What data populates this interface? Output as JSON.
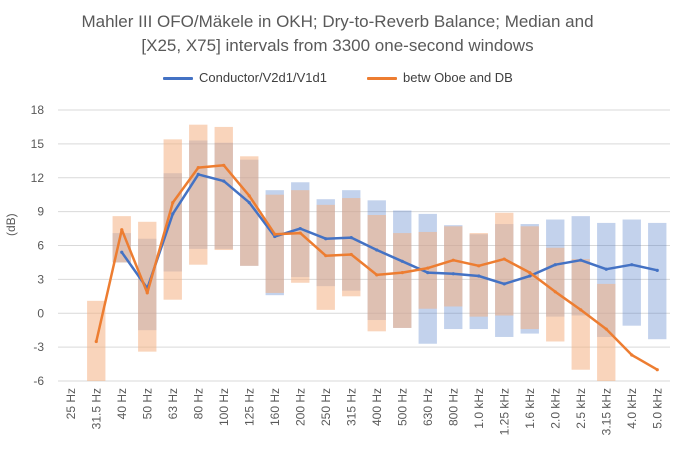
{
  "chart_data": {
    "type": "line",
    "title": "Mahler III OFO/Mäkele in OKH; Dry-to-Reverb Balance; Median and",
    "subtitle": "[X25, X75] intervals from 3300 one-second windows",
    "ylabel": "(dB)",
    "xlabel": "",
    "ylim": [
      -6,
      18
    ],
    "yticks": [
      18,
      15,
      12,
      9,
      6,
      3,
      0,
      -3,
      -6
    ],
    "grid": true,
    "legend_position": "top",
    "categories": [
      "25 Hz",
      "31.5 Hz",
      "40 Hz",
      "50 Hz",
      "63 Hz",
      "80 Hz",
      "100 Hz",
      "125 Hz",
      "160 Hz",
      "200 Hz",
      "250 Hz",
      "315 Hz",
      "400 Hz",
      "500 Hz",
      "630 Hz",
      "800 Hz",
      "1.0 kHz",
      "1.25 kHz",
      "1.6 kHz",
      "2.0 kHz",
      "2.5 kHz",
      "3.15 kHz",
      "4.0 kHz",
      "5.0 kHz"
    ],
    "series": [
      {
        "name": "Conductor/V2d1/V1d1",
        "color": "#4472c4",
        "values": [
          null,
          null,
          5.4,
          2.2,
          8.8,
          12.3,
          11.7,
          9.8,
          6.8,
          7.5,
          6.6,
          6.7,
          5.6,
          4.6,
          3.6,
          3.5,
          3.3,
          2.6,
          3.3,
          4.3,
          4.7,
          3.9,
          4.3,
          3.8
        ],
        "q25": [
          null,
          null,
          4.5,
          -1.5,
          3.7,
          5.7,
          5.7,
          4.2,
          1.6,
          3.2,
          2.4,
          2.0,
          -0.6,
          -1.3,
          -2.7,
          -1.4,
          -1.4,
          -2.1,
          -1.8,
          -0.3,
          -0.2,
          -2.1,
          -1.1,
          -2.3
        ],
        "q75": [
          null,
          null,
          7.1,
          6.6,
          12.4,
          15.3,
          15.1,
          13.6,
          10.9,
          11.6,
          10.1,
          10.9,
          10.0,
          9.1,
          8.8,
          7.8,
          7.0,
          7.9,
          7.9,
          8.3,
          8.6,
          8.0,
          8.3,
          8.0
        ]
      },
      {
        "name": "betw Oboe and DB",
        "color": "#ed7d31",
        "values": [
          null,
          -2.5,
          7.4,
          1.8,
          9.8,
          12.9,
          13.1,
          10.4,
          7.0,
          7.1,
          5.1,
          5.2,
          3.4,
          3.6,
          4.0,
          4.7,
          4.2,
          4.8,
          3.6,
          1.9,
          0.3,
          -1.4,
          -3.7,
          -5.0
        ],
        "q25": [
          null,
          -6.0,
          4.5,
          -3.4,
          1.2,
          4.3,
          5.6,
          4.2,
          1.8,
          2.7,
          0.3,
          1.5,
          -1.6,
          -1.3,
          0.4,
          0.6,
          -0.3,
          -0.2,
          -1.4,
          -2.5,
          -5.0,
          -6.0,
          null,
          null
        ],
        "q75": [
          null,
          1.1,
          8.6,
          8.1,
          15.4,
          16.7,
          16.5,
          13.9,
          10.5,
          10.9,
          9.6,
          10.2,
          8.7,
          7.1,
          7.2,
          7.7,
          7.1,
          8.9,
          7.7,
          5.8,
          4.8,
          2.6,
          null,
          null
        ]
      }
    ]
  }
}
